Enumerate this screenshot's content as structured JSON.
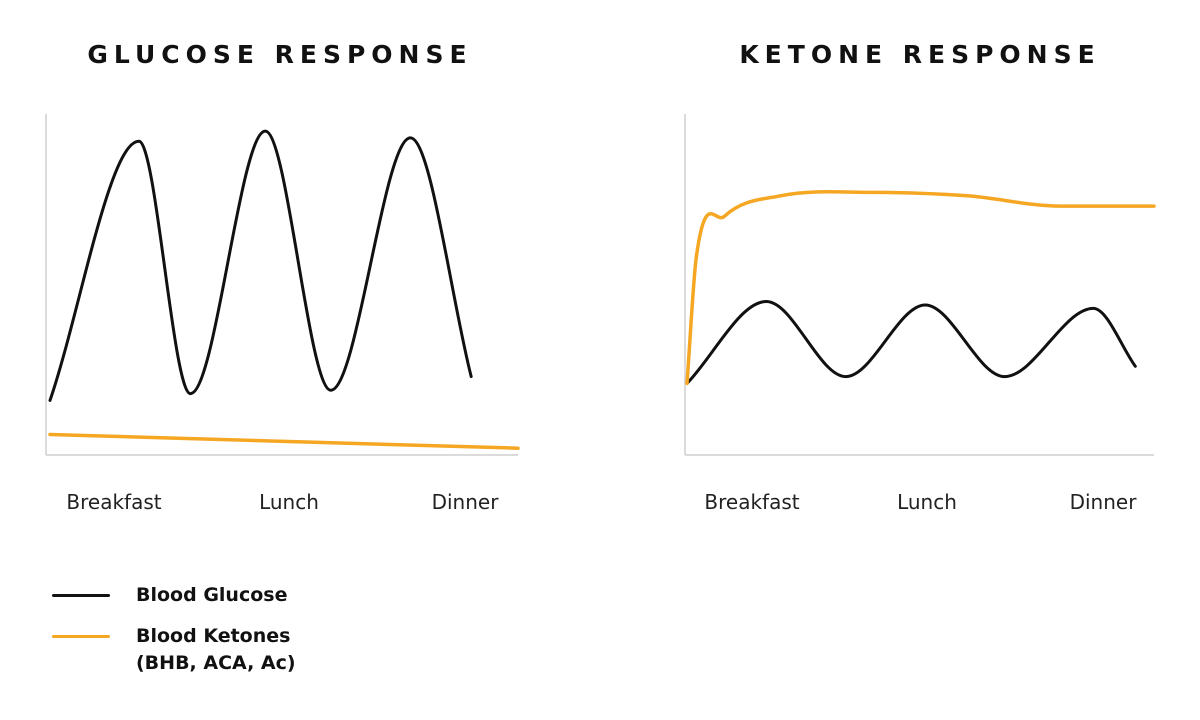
{
  "colors": {
    "glucose": "#111111",
    "ketones": "#f5a623",
    "axis": "#cfcfcf"
  },
  "legend": {
    "items": [
      {
        "label": "Blood Glucose",
        "sublabel": "",
        "color_key": "glucose"
      },
      {
        "label": "Blood Ketones",
        "sublabel": "(BHB, ACA, Ac)",
        "color_key": "ketones"
      }
    ]
  },
  "chart_data": [
    {
      "type": "line",
      "title": "GLUCOSE RESPONSE",
      "categories": [
        "Breakfast",
        "Lunch",
        "Dinner"
      ],
      "xlabel": "",
      "ylabel": "",
      "xlim": [
        0,
        1
      ],
      "ylim": [
        0,
        1
      ],
      "grid": false,
      "series": [
        {
          "name": "Blood Glucose",
          "color_key": "glucose",
          "x": [
            0.0,
            0.19,
            0.3,
            0.46,
            0.6,
            0.77,
            0.9
          ],
          "y": [
            0.16,
            0.92,
            0.18,
            0.95,
            0.19,
            0.93,
            0.23
          ]
        },
        {
          "name": "Blood Ketones",
          "color_key": "ketones",
          "x": [
            0.0,
            1.0
          ],
          "y": [
            0.06,
            0.02
          ]
        }
      ]
    },
    {
      "type": "line",
      "title": "KETONE RESPONSE",
      "categories": [
        "Breakfast",
        "Lunch",
        "Dinner"
      ],
      "xlabel": "",
      "ylabel": "",
      "xlim": [
        0,
        1
      ],
      "ylim": [
        0,
        1
      ],
      "grid": false,
      "series": [
        {
          "name": "Blood Glucose",
          "color_key": "glucose",
          "x": [
            0.0,
            0.17,
            0.34,
            0.51,
            0.68,
            0.87,
            0.96
          ],
          "y": [
            0.21,
            0.45,
            0.23,
            0.44,
            0.23,
            0.43,
            0.26
          ]
        },
        {
          "name": "Blood Ketones",
          "color_key": "ketones",
          "x": [
            0.0,
            0.02,
            0.08,
            0.2,
            0.4,
            0.6,
            0.8,
            1.0
          ],
          "y": [
            0.21,
            0.58,
            0.7,
            0.76,
            0.77,
            0.76,
            0.73,
            0.73
          ]
        }
      ]
    }
  ]
}
